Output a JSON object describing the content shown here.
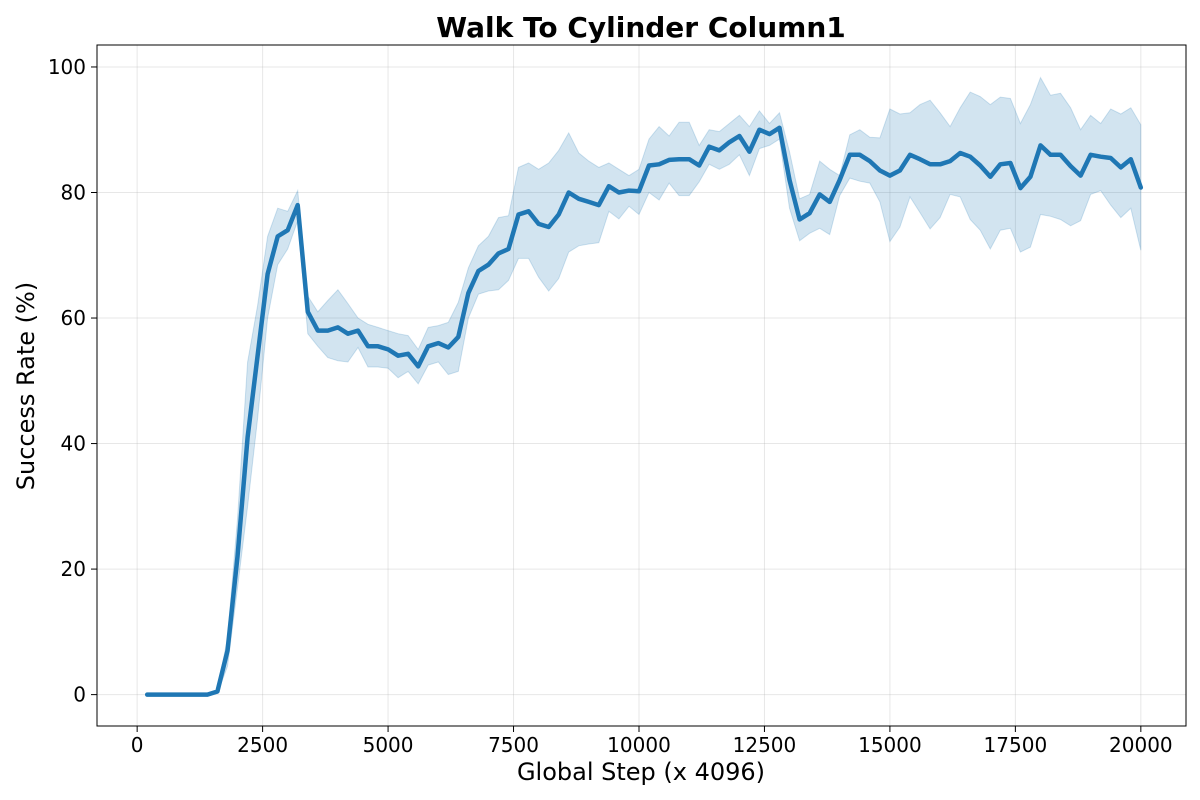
{
  "chart_data": {
    "type": "line",
    "title": "Walk To Cylinder Column1",
    "xlabel": "Global Step (x 4096)",
    "ylabel": "Success Rate (%)",
    "xlim": [
      -800,
      20900
    ],
    "ylim": [
      -5,
      103.5
    ],
    "xticks": [
      0,
      2500,
      5000,
      7500,
      10000,
      12500,
      15000,
      17500,
      20000
    ],
    "yticks": [
      0,
      20,
      40,
      60,
      80,
      100
    ],
    "grid": true,
    "colors": {
      "line": "#1f77b4",
      "band": "#1f77b4"
    },
    "series": [
      {
        "x": [
          200,
          400,
          600,
          800,
          1000,
          1200,
          1400,
          1600,
          1800,
          2000,
          2200,
          2400,
          2600,
          2800,
          3000,
          3200,
          3400,
          3600,
          3800,
          4000,
          4200,
          4400,
          4600,
          4800,
          5000,
          5200,
          5400,
          5600,
          5800,
          6000,
          6200,
          6400,
          6600,
          6800,
          7000,
          7200,
          7400,
          7600,
          7800,
          8000,
          8200,
          8400,
          8600,
          8800,
          9000,
          9200,
          9400,
          9600,
          9800,
          10000,
          10200,
          10400,
          10600,
          10800,
          11000,
          11200,
          11400,
          11600,
          11800,
          12000,
          12200,
          12400,
          12600,
          12800,
          13000,
          13200,
          13400,
          13600,
          13800,
          14000,
          14200,
          14400,
          14600,
          14800,
          15000,
          15200,
          15400,
          15600,
          15800,
          16000,
          16200,
          16400,
          16600,
          16800,
          17000,
          17200,
          17400,
          17600,
          17800,
          18000,
          18200,
          18400,
          18600,
          18800,
          19000,
          19200,
          19400,
          19600,
          19800,
          20000
        ],
        "y": [
          0,
          0,
          0,
          0,
          0,
          0,
          0,
          0.5,
          7,
          22,
          41,
          54,
          67,
          73,
          74,
          78,
          61,
          58,
          58,
          58.5,
          57.5,
          58,
          55.5,
          55.5,
          55,
          54,
          54.3,
          52.3,
          55.5,
          56,
          55.3,
          57,
          64,
          67.5,
          68.5,
          70.3,
          71,
          76.5,
          77,
          75,
          74.5,
          76.5,
          80,
          79,
          78.5,
          78,
          81,
          80,
          80.3,
          80.2,
          84.3,
          84.5,
          85.2,
          85.3,
          85.3,
          84.3,
          87.3,
          86.7,
          88,
          89,
          86.5,
          90,
          89.3,
          90.3,
          82,
          75.7,
          76.7,
          79.7,
          78.5,
          82,
          86,
          86,
          85,
          83.5,
          82.7,
          83.5,
          86,
          85.3,
          84.5,
          84.5,
          85,
          86.3,
          85.7,
          84.3,
          82.5,
          84.5,
          84.7,
          80.7,
          82.5,
          87.5,
          86,
          86,
          84.2,
          82.7,
          86,
          85.7,
          85.5,
          84,
          85.3,
          80.8
        ],
        "upper": [
          0,
          0,
          0,
          0,
          0,
          0,
          0,
          0.8,
          9,
          28,
          53,
          62,
          73,
          77.5,
          77,
          80.3,
          63.5,
          61,
          62.8,
          64.5,
          62.3,
          60,
          59,
          58.5,
          58,
          57.5,
          57.2,
          55,
          58.5,
          58.8,
          59.3,
          62.5,
          68,
          71.5,
          73,
          76,
          76.3,
          84,
          84.7,
          83.7,
          84.7,
          86.7,
          89.5,
          86.3,
          85,
          84,
          84.7,
          83.7,
          82.7,
          83.7,
          88.5,
          90.5,
          89,
          91.2,
          91.2,
          87.5,
          90,
          89.7,
          91,
          92.3,
          90.5,
          93,
          91,
          92.7,
          86.5,
          79,
          79.7,
          85,
          83.7,
          82.7,
          89.2,
          90,
          88.8,
          88.7,
          93.3,
          92.5,
          92.7,
          94,
          94.7,
          92.7,
          90.5,
          93.5,
          96,
          95.3,
          94,
          95.2,
          95,
          91,
          94,
          98.3,
          95.5,
          95.8,
          93.5,
          90,
          92.3,
          91,
          93.3,
          92.5,
          93.5,
          90.8
        ],
        "lower": [
          0,
          0,
          0,
          0,
          0,
          0,
          0,
          0.2,
          4.5,
          17,
          30,
          44,
          60,
          68.5,
          71,
          75.5,
          57.5,
          55.5,
          53.7,
          53.2,
          53,
          55.3,
          52.2,
          52.2,
          52,
          50.5,
          51.5,
          49.5,
          52.5,
          53,
          51,
          51.5,
          60,
          63.8,
          64.3,
          64.5,
          66,
          69.5,
          69.5,
          66.5,
          64.3,
          66.3,
          70.5,
          71.5,
          71.8,
          72,
          77,
          75.8,
          77.8,
          76.5,
          80,
          78.8,
          81.5,
          79.5,
          79.5,
          81.7,
          84.5,
          83.7,
          84.5,
          86,
          82.7,
          87,
          87.5,
          88.5,
          77.5,
          72.3,
          73.5,
          74.3,
          73.3,
          79.5,
          82.3,
          81.8,
          81.5,
          78.5,
          72.2,
          74.5,
          79.3,
          76.8,
          74.2,
          76,
          79.7,
          79.3,
          75.7,
          74,
          71,
          74,
          74.3,
          70.5,
          71.3,
          76.5,
          76.2,
          75.7,
          74.7,
          75.5,
          79.7,
          80.3,
          78,
          76,
          77.5,
          70.8
        ]
      }
    ]
  }
}
